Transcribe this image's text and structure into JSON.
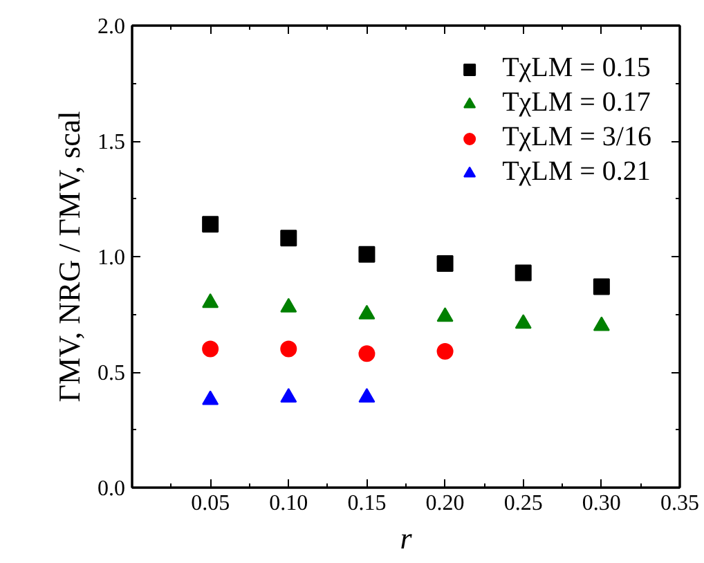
{
  "chart_data": {
    "type": "scatter",
    "xlabel": "r",
    "ylabel": "ΓMV, NRG / ΓMV, scal",
    "x": [
      0.05,
      0.1,
      0.15,
      0.2,
      0.25,
      0.3
    ],
    "series": [
      {
        "name": "TχLM = 0.15",
        "color": "#000000",
        "marker": "square",
        "values": [
          1.14,
          1.08,
          1.01,
          0.97,
          0.93,
          0.87
        ]
      },
      {
        "name": "TχLM = 0.17",
        "color": "#008000",
        "marker": "triangle",
        "values": [
          0.8,
          0.78,
          0.75,
          0.74,
          0.71,
          0.7
        ]
      },
      {
        "name": "TχLM = 3/16",
        "color": "#ff0000",
        "marker": "circle",
        "values": [
          0.6,
          0.6,
          0.58,
          0.59,
          null,
          null
        ]
      },
      {
        "name": "TχLM = 0.21",
        "color": "#0000ff",
        "marker": "triangle",
        "values": [
          0.38,
          0.39,
          0.39,
          null,
          null,
          null
        ]
      }
    ],
    "xlim": [
      0,
      0.35
    ],
    "xticks": [
      0.05,
      {
        "value": 0.1,
        "label": "0.10"
      },
      0.15,
      {
        "value": 0.2,
        "label": "0.20"
      },
      0.25,
      {
        "value": 0.3,
        "label": "0.30"
      },
      0.35
    ],
    "ylim": [
      0,
      2.0
    ],
    "yticks": [
      {
        "value": 0,
        "label": "0.0"
      },
      0.5,
      {
        "value": 1,
        "label": "1.0"
      },
      1.5,
      {
        "value": 2,
        "label": "2.0"
      }
    ],
    "grid": false,
    "legend": "top right"
  }
}
